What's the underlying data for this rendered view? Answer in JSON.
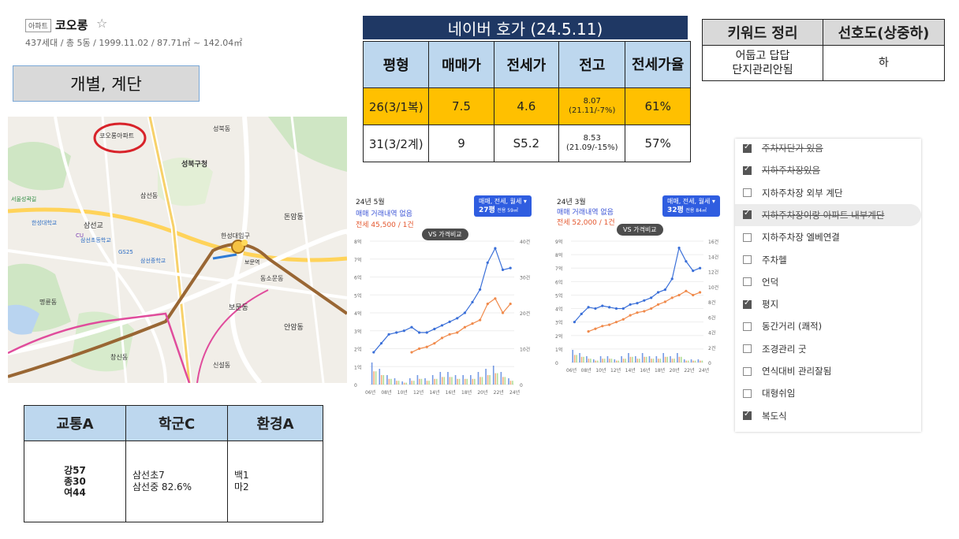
{
  "apartment": {
    "tag": "아파트",
    "name": "코오롱",
    "star": "☆",
    "meta": "437세대 / 총 5동 / 1999.11.02 / 87.71㎡ ~ 142.04㎡"
  },
  "type_label": "개별, 계단",
  "price_table": {
    "title": "네이버 호가 (24.5.11)",
    "headers": [
      "평형",
      "매매가",
      "전세가",
      "전고",
      "전세가율"
    ],
    "rows": [
      {
        "size": "26(3/1복)",
        "sale": "7.5",
        "jeonse": "4.6",
        "high1": "8.07",
        "high2": "(21.11/-7%)",
        "ratio": "61%"
      },
      {
        "size": "31(3/2계)",
        "sale": "9",
        "jeonse": "S5.2",
        "high1": "8.53",
        "high2": "(21.09/-15%)",
        "ratio": "57%"
      }
    ]
  },
  "keyword_table": {
    "headers": [
      "키워드 정리",
      "선호도(상중하)"
    ],
    "keywords_line1": "어둡고 답답",
    "keywords_line2": "단지관리안됨",
    "preference": "하"
  },
  "map": {
    "labels": [
      "코오롱아파트",
      "삼선동",
      "성북구청",
      "삼선교",
      "한성대입구",
      "보문동",
      "안암동",
      "돈암동",
      "삼선초등학교",
      "삼선중학교",
      "동소문동",
      "성북동",
      "창신동",
      "명륜동",
      "보문역",
      "신설동",
      "한성대학교",
      "서울성곽길",
      "GS25",
      "CU"
    ]
  },
  "chart_data": [
    {
      "type": "line",
      "date_label": "24년 5월",
      "no_deal": "매매 거래내역 없음",
      "jeonse_text": "전세 45,500 / 1건",
      "filter_label": "매매, 전세, 월세",
      "size_label": "27평",
      "size_sub": "전용 59㎡",
      "vs_label": "VS 가격비교",
      "x_ticks": [
        "06년",
        "08년",
        "10년",
        "12년",
        "14년",
        "16년",
        "18년",
        "20년",
        "22년",
        "24년"
      ],
      "y_ticks_left": [
        "0",
        "1억",
        "2억",
        "3억",
        "4억",
        "5억",
        "6억",
        "7억",
        "8억"
      ],
      "y_ticks_right": [
        "0",
        "10건",
        "20건",
        "30건",
        "40건"
      ],
      "ylim": [
        0,
        8
      ],
      "series": [
        {
          "name": "매매",
          "color": "#3a6fd8",
          "x": [
            2006,
            2007,
            2008,
            2009,
            2010,
            2011,
            2012,
            2013,
            2014,
            2015,
            2016,
            2017,
            2018,
            2019,
            2020,
            2021,
            2022,
            2023,
            2024
          ],
          "values": [
            1.8,
            2.3,
            2.8,
            2.9,
            3.0,
            3.2,
            2.9,
            2.9,
            3.1,
            3.3,
            3.5,
            3.7,
            4.0,
            4.6,
            5.3,
            6.8,
            7.6,
            6.4,
            6.5
          ]
        },
        {
          "name": "전세",
          "color": "#f08a4b",
          "x": [
            2011,
            2012,
            2013,
            2014,
            2015,
            2016,
            2017,
            2018,
            2019,
            2020,
            2021,
            2022,
            2023,
            2024
          ],
          "values": [
            1.8,
            2.0,
            2.1,
            2.3,
            2.6,
            2.8,
            2.9,
            3.2,
            3.4,
            3.6,
            4.5,
            4.8,
            4.0,
            4.5
          ]
        }
      ],
      "volume": [
        7,
        5,
        3,
        2,
        1,
        2,
        3,
        2,
        3,
        4,
        4,
        3,
        3,
        3,
        4,
        5,
        6,
        4,
        2
      ]
    },
    {
      "type": "line",
      "date_label": "24년 3월",
      "no_deal": "매매 거래내역 없음",
      "jeonse_text": "전세 52,000 / 1건",
      "filter_label": "매매, 전세, 월세",
      "size_label": "32평",
      "size_sub": "전용 84㎡",
      "vs_label": "VS 가격비교",
      "x_ticks": [
        "06년",
        "08년",
        "10년",
        "12년",
        "14년",
        "16년",
        "18년",
        "20년",
        "22년",
        "24년"
      ],
      "y_ticks_left": [
        "0",
        "1억",
        "2억",
        "3억",
        "4억",
        "5억",
        "6억",
        "7억",
        "8억",
        "9억"
      ],
      "y_ticks_right": [
        "0",
        "2건",
        "4건",
        "6건",
        "8건",
        "10건",
        "12건",
        "14건",
        "16건"
      ],
      "ylim": [
        0,
        9
      ],
      "series": [
        {
          "name": "매매",
          "color": "#3a6fd8",
          "x": [
            2006,
            2007,
            2008,
            2009,
            2010,
            2011,
            2012,
            2013,
            2014,
            2015,
            2016,
            2017,
            2018,
            2019,
            2020,
            2021,
            2022,
            2023,
            2024
          ],
          "values": [
            3.0,
            3.6,
            4.1,
            4.0,
            4.2,
            4.1,
            4.0,
            4.0,
            4.3,
            4.4,
            4.6,
            4.8,
            5.2,
            5.4,
            6.2,
            8.5,
            7.5,
            6.8,
            7.0
          ]
        },
        {
          "name": "전세",
          "color": "#f08a4b",
          "x": [
            2008,
            2009,
            2010,
            2011,
            2012,
            2013,
            2014,
            2015,
            2016,
            2017,
            2018,
            2019,
            2020,
            2021,
            2022,
            2023,
            2024
          ],
          "values": [
            2.3,
            2.5,
            2.7,
            2.8,
            3.0,
            3.2,
            3.5,
            3.7,
            3.8,
            4.0,
            4.3,
            4.5,
            4.8,
            5.0,
            5.3,
            5.0,
            5.2
          ]
        }
      ],
      "volume": [
        4,
        3,
        2,
        1,
        2,
        2,
        1,
        2,
        3,
        2,
        3,
        2,
        2,
        3,
        2,
        3,
        1,
        1,
        1
      ]
    }
  ],
  "checklist": [
    {
      "label": "주차자단가 있음",
      "checked": true,
      "strike": true
    },
    {
      "label": "지하주차장있음",
      "checked": true,
      "strike": true
    },
    {
      "label": "지하주차장 외부 계단",
      "checked": false,
      "strike": false
    },
    {
      "label": "지하주차장이랑 아파트 내부계단",
      "checked": true,
      "strike": true
    },
    {
      "label": "지하주차장 엘베연결",
      "checked": false,
      "strike": false
    },
    {
      "label": "주차헬",
      "checked": false,
      "strike": false
    },
    {
      "label": "언덕",
      "checked": false,
      "strike": false
    },
    {
      "label": "평지",
      "checked": true,
      "strike": false
    },
    {
      "label": "동간거리 (쾌적)",
      "checked": false,
      "strike": false
    },
    {
      "label": "조경관리 굿",
      "checked": false,
      "strike": false
    },
    {
      "label": "연식대비 관리잘됨",
      "checked": false,
      "strike": false
    },
    {
      "label": "대형쉬임",
      "checked": false,
      "strike": false
    },
    {
      "label": "복도식",
      "checked": true,
      "strike": false
    }
  ],
  "rating_table": {
    "headers": [
      "교통A",
      "학군C",
      "환경A"
    ],
    "transport": [
      "강57",
      "종30",
      "여44"
    ],
    "school": [
      "삼선초7",
      "삼선중 82.6%"
    ],
    "environment": [
      "백1",
      "마2"
    ]
  }
}
